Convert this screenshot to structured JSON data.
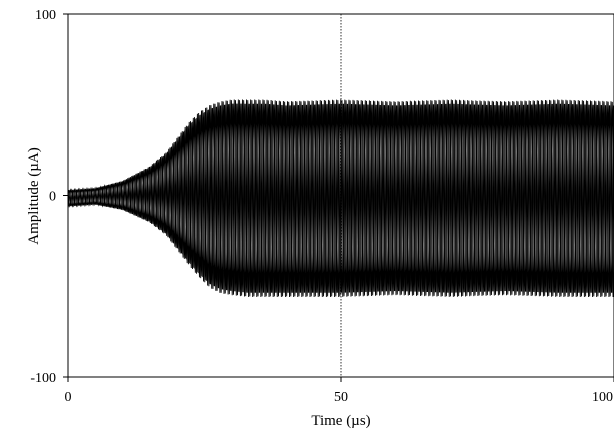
{
  "chart_data": {
    "type": "line",
    "title": "",
    "xlabel": "Time (µs)",
    "ylabel": "Amplitude (µA)",
    "xlim": [
      0,
      100
    ],
    "ylim": [
      -100,
      100
    ],
    "x_ticks": [
      0,
      50,
      100
    ],
    "x_tick_labels": [
      "0",
      "50",
      "100"
    ],
    "y_ticks": [
      -100,
      0,
      100
    ],
    "y_tick_labels": [
      "-100",
      "0",
      "100"
    ],
    "grid": "dotted vertical line at x = 50",
    "line_color": "#000000",
    "oscillation_period_us": 0.75,
    "series": [
      {
        "envelope": {
          "x": [
            0,
            5,
            10,
            15,
            18,
            20,
            22,
            24,
            26,
            28,
            30,
            33,
            36,
            40,
            50,
            60,
            70,
            80,
            90,
            100
          ],
          "upper": [
            3,
            4,
            8,
            16,
            24,
            32,
            40,
            46,
            50,
            52,
            53,
            53,
            53,
            52,
            53,
            52,
            53,
            52,
            53,
            52
          ],
          "lower": [
            -6,
            -5,
            -8,
            -15,
            -22,
            -30,
            -38,
            -45,
            -51,
            -54,
            -55,
            -56,
            -56,
            -56,
            -56,
            -55,
            -56,
            -55,
            -56,
            -56
          ]
        }
      }
    ]
  }
}
